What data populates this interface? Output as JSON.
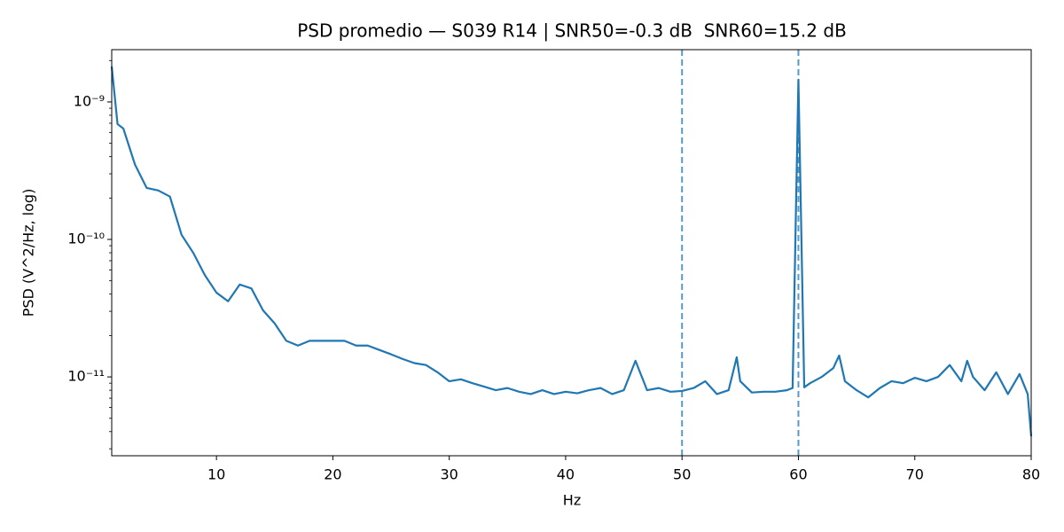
{
  "chart_data": {
    "type": "line",
    "title": "PSD promedio — S039 R14 | SNR50=-0.3 dB  SNR60=15.2 dB",
    "xlabel": "Hz",
    "ylabel": "PSD (V^2/Hz, log)",
    "color": "#1f77b4",
    "yscale": "log",
    "x": [
      1,
      1.5,
      2,
      3,
      4,
      5,
      6,
      7,
      8,
      9,
      10,
      11,
      12,
      13,
      14,
      15,
      16,
      17,
      18,
      19,
      20,
      21,
      22,
      23,
      24,
      25,
      26,
      27,
      28,
      29,
      30,
      31,
      32,
      33,
      34,
      35,
      36,
      37,
      38,
      39,
      40,
      41,
      42,
      43,
      44,
      45,
      46,
      47,
      48,
      49,
      50,
      51,
      52,
      53,
      54,
      54.7,
      55,
      56,
      57,
      58,
      59,
      59.5,
      60,
      60.5,
      61,
      62,
      63,
      63.5,
      64,
      65,
      66,
      67,
      68,
      69,
      70,
      71,
      72,
      73,
      74,
      74.5,
      75,
      76,
      77,
      78,
      79,
      79.7,
      80
    ],
    "values": [
      1.81e-09,
      6.9e-10,
      6.4e-10,
      3.5e-10,
      2.37e-10,
      2.27e-10,
      2.05e-10,
      1.08e-10,
      8e-11,
      5.5e-11,
      4.1e-11,
      3.55e-11,
      4.7e-11,
      4.4e-11,
      3.05e-11,
      2.45e-11,
      1.83e-11,
      1.69e-11,
      1.83e-11,
      1.83e-11,
      1.83e-11,
      1.83e-11,
      1.69e-11,
      1.69e-11,
      1.57e-11,
      1.46e-11,
      1.35e-11,
      1.26e-11,
      1.22e-11,
      1.08e-11,
      9.3e-12,
      9.6e-12,
      9e-12,
      8.5e-12,
      8e-12,
      8.3e-12,
      7.8e-12,
      7.5e-12,
      8e-12,
      7.5e-12,
      7.8e-12,
      7.6e-12,
      8e-12,
      8.3e-12,
      7.5e-12,
      8e-12,
      1.31e-11,
      8e-12,
      8.3e-12,
      7.8e-12,
      7.9e-12,
      8.3e-12,
      9.3e-12,
      7.5e-12,
      8e-12,
      1.39e-11,
      9.3e-12,
      7.7e-12,
      7.8e-12,
      7.8e-12,
      8e-12,
      8.3e-12,
      1.45e-09,
      8.4e-12,
      9e-12,
      1e-11,
      1.16e-11,
      1.43e-11,
      9.3e-12,
      8e-12,
      7.1e-12,
      8.3e-12,
      9.3e-12,
      9e-12,
      9.85e-12,
      9.3e-12,
      1e-11,
      1.22e-11,
      9.3e-12,
      1.31e-11,
      1e-11,
      8e-12,
      1.08e-11,
      7.5e-12,
      1.05e-11,
      7.5e-12,
      3.7e-12
    ],
    "vlines": [
      50,
      60
    ],
    "xlim": [
      1,
      80
    ],
    "xticks": [
      10,
      20,
      30,
      40,
      50,
      60,
      70,
      80
    ],
    "ylim": [
      2.67e-12,
      2.4e-09
    ],
    "yticks": [
      {
        "value": 1e-11,
        "label": "10⁻¹¹"
      },
      {
        "value": 1e-10,
        "label": "10⁻¹⁰"
      },
      {
        "value": 1e-09,
        "label": "10⁻⁹"
      }
    ],
    "yminor_ticks": [
      3e-12,
      4e-12,
      5e-12,
      6e-12,
      7e-12,
      8e-12,
      9e-12,
      2e-11,
      3e-11,
      4e-11,
      5e-11,
      6e-11,
      7e-11,
      8e-11,
      9e-11,
      2e-10,
      3e-10,
      4e-10,
      5e-10,
      6e-10,
      7e-10,
      8e-10,
      9e-10,
      2e-09
    ]
  }
}
